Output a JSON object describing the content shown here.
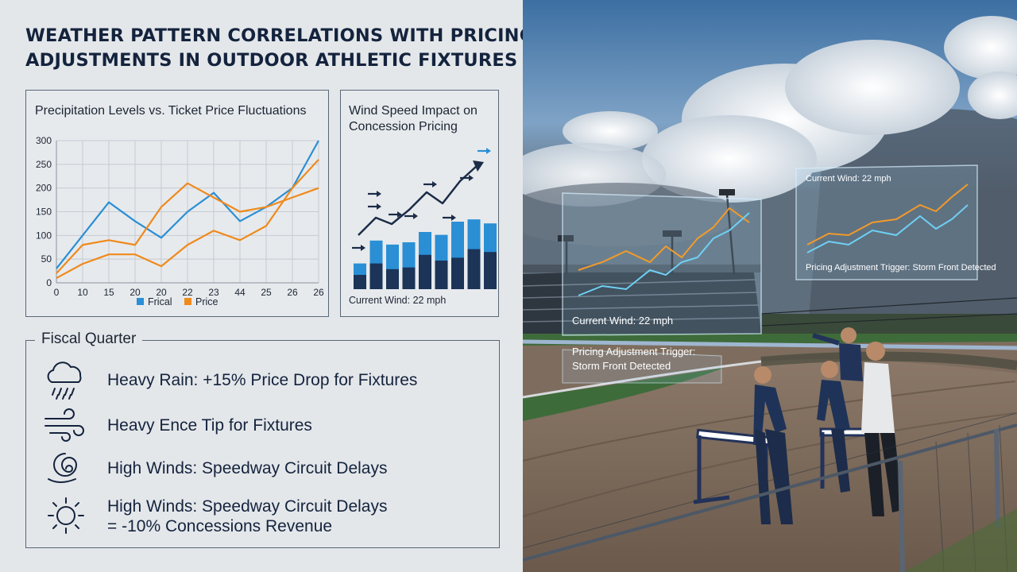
{
  "title": {
    "line1": "WEATHER PATTERN CORRELATIONS WITH PRICING ADJUSTMENTS",
    "line2": "ADJUSTMENTS IN OUTDOOR ATHLETIC FIXTURES & SPEEDWAY CIRCUIT"
  },
  "precip_card": {
    "title": "Precipitation Levels vs. Ticket Price Fluctuations"
  },
  "wind_card": {
    "title_line1": "Wind Speed Impact on",
    "title_line2": "Concession Pricing",
    "footer": "Current Wind: 22 mph"
  },
  "chart_data": [
    {
      "type": "line",
      "title": "Precipitation Levels vs. Ticket Price Fluctuations",
      "categories": [
        "0",
        "10",
        "15",
        "20",
        "20",
        "22",
        "23",
        "44",
        "25",
        "26",
        "26"
      ],
      "yticks": [
        0,
        50,
        100,
        150,
        200,
        250,
        300
      ],
      "ylim": [
        0,
        300
      ],
      "series": [
        {
          "name": "Frical",
          "values": [
            30,
            100,
            170,
            130,
            95,
            150,
            190,
            130,
            160,
            200,
            300
          ]
        },
        {
          "name": "Price",
          "values": [
            20,
            80,
            90,
            80,
            160,
            210,
            180,
            150,
            160,
            180,
            200
          ]
        },
        {
          "name": "",
          "values": [
            10,
            40,
            60,
            60,
            35,
            80,
            110,
            90,
            120,
            200,
            260
          ]
        }
      ],
      "legend_position": "bottom",
      "grid": true
    },
    {
      "type": "bar",
      "title": "Wind Speed Impact on Concession Pricing",
      "series": [
        {
          "name": "",
          "values": [
            0.45,
            0.85,
            0.78,
            0.82,
            1.0,
            0.95,
            1.18,
            1.22,
            1.15,
            1.65,
            1.75,
            1.95
          ]
        },
        {
          "name": "",
          "values": [
            0.25,
            0.45,
            0.35,
            0.38,
            0.6,
            0.5,
            0.55,
            0.7,
            0.65,
            0.82,
            0.85,
            0.92
          ]
        }
      ],
      "footer": "Current Wind: 22 mph"
    }
  ],
  "fiscal": {
    "legend": "Fiscal Quarter",
    "items": [
      {
        "icon": "rain-cloud-icon",
        "text_line1": "Heavy Rain: +15% Price Drop for Fixtures",
        "text_line2": ""
      },
      {
        "icon": "wind-icon",
        "text_line1": "Heavy Ence Tip for Fixtures",
        "text_line2": ""
      },
      {
        "icon": "spiral-wind-icon",
        "text_line1": "High Winds: Speedway Circuit Delays",
        "text_line2": ""
      },
      {
        "icon": "sun-icon",
        "text_line1": "High Winds: Speedway Circuit Delays",
        "text_line2": "= -10% Concessions Revenue"
      }
    ]
  },
  "photo": {
    "holo_left": {
      "label": "Current Wind: 22 mph",
      "trigger_line1": "Pricing Adjustment Trigger:",
      "trigger_line2": "Storm Front Detected"
    },
    "holo_right": {
      "label": "Current Wind: 22 mph",
      "trigger": "Pricing Adjustment Trigger: Storm Front Detected"
    }
  },
  "colors": {
    "blue": "#2a8fd4",
    "orange": "#ef8a1c",
    "navy": "#1b3457",
    "title": "#14233d"
  }
}
